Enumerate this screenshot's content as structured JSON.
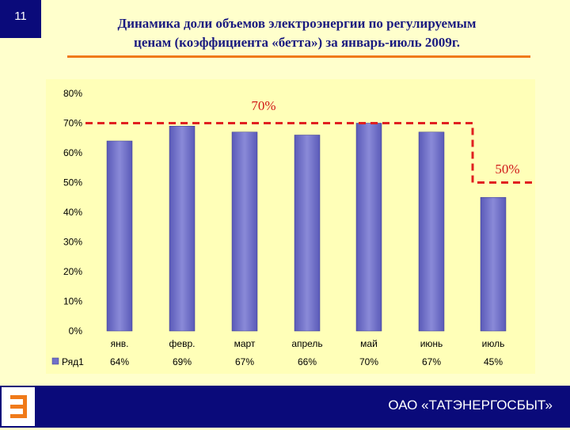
{
  "slide_number": "11",
  "title_line1": "Динамика доли объемов электроэнергии по регулируемым",
  "title_line2": "ценам (коэффициента «бетта») за январь-июль 2009г.",
  "company": "ОАО «ТАТЭНЕРГОСБЫТ»",
  "colors": {
    "accent": "#F07A1A",
    "navy": "#0A0A7A",
    "bar": "#7070C8",
    "dashed": "#E02020"
  },
  "chart_data": {
    "type": "bar",
    "categories": [
      "янв.",
      "февр.",
      "март",
      "апрель",
      "май",
      "июнь",
      "июль"
    ],
    "series": [
      {
        "name": "Ряд1",
        "values": [
          64,
          69,
          67,
          66,
          70,
          67,
          45
        ]
      }
    ],
    "data_labels": [
      "64%",
      "69%",
      "67%",
      "66%",
      "70%",
      "67%",
      "45%"
    ],
    "y_ticks": [
      "0%",
      "10%",
      "20%",
      "30%",
      "40%",
      "50%",
      "60%",
      "70%",
      "80%"
    ],
    "ylim": [
      0,
      80
    ],
    "annotations": [
      {
        "text": "70%",
        "value": 70
      },
      {
        "text": "50%",
        "value": 50
      }
    ],
    "legend": "bottom-left data table",
    "grid": false
  }
}
